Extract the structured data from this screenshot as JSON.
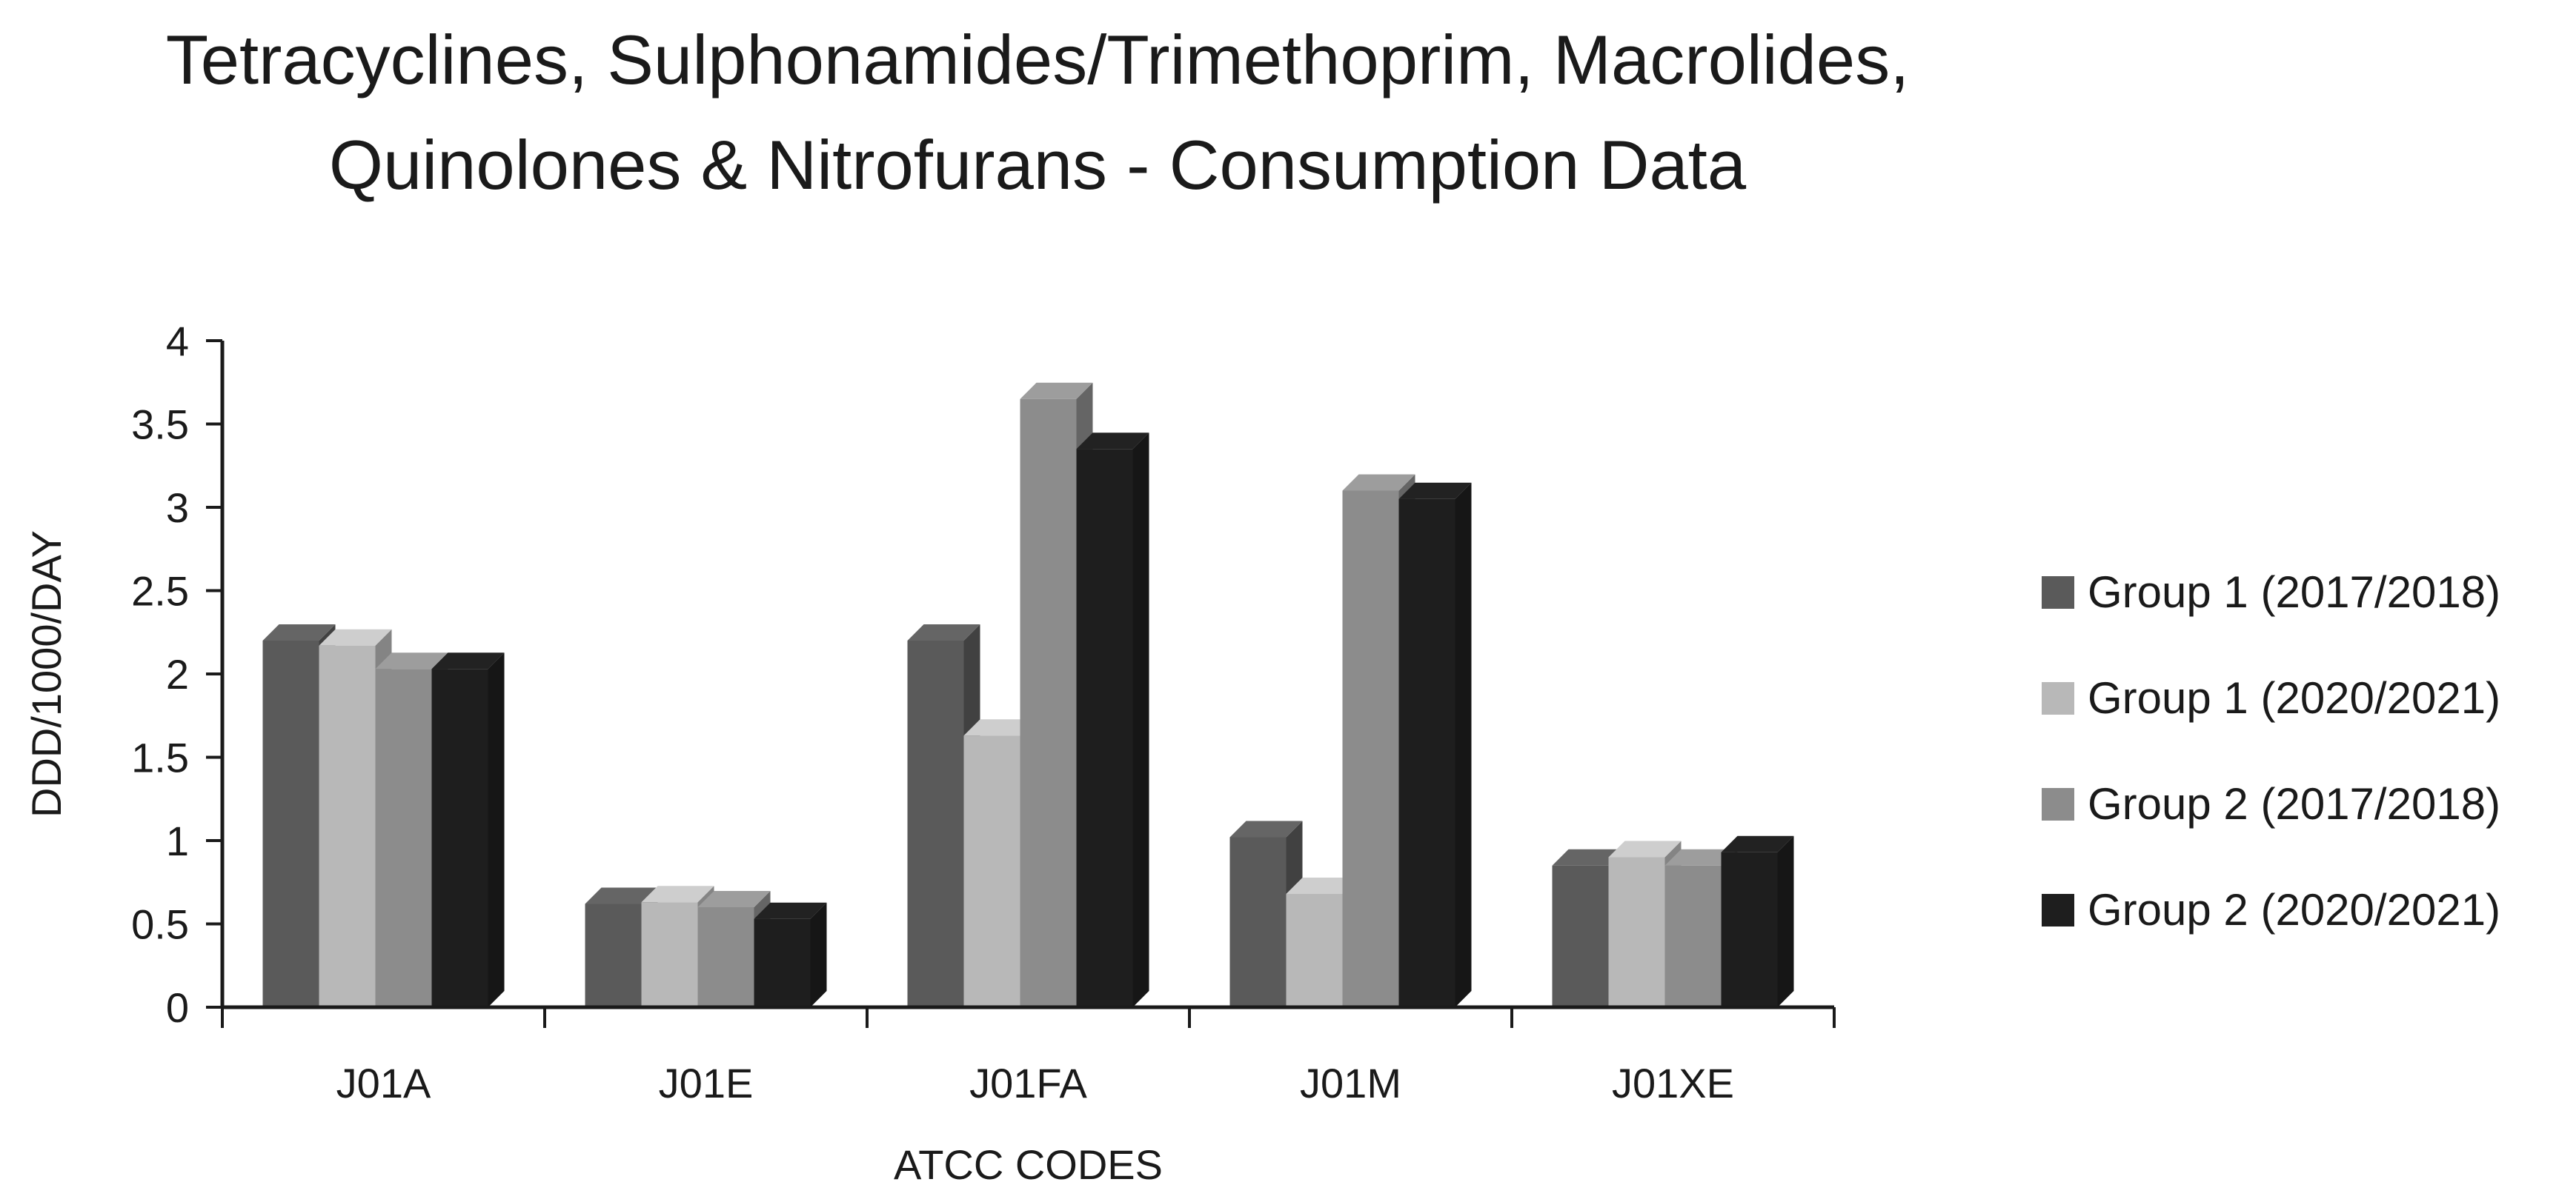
{
  "chart_data": {
    "type": "bar",
    "title_lines": [
      "Tetracyclines, Sulphonamides/Trimethoprim, Macrolides,",
      "Quinolones & Nitrofurans - Consumption Data"
    ],
    "xlabel": "ATCC CODES",
    "ylabel": "DDD/1000/DAY",
    "categories": [
      "J01A",
      "J01E",
      "J01FA",
      "J01M",
      "J01XE"
    ],
    "ylim": [
      0,
      4
    ],
    "yticks": [
      "0",
      "0.5",
      "1",
      "1.5",
      "2",
      "2.5",
      "3",
      "3.5",
      "4"
    ],
    "legend_position": "right",
    "grid": false,
    "series": [
      {
        "name": "Group 1 (2017/2018)",
        "color": "#5a5a5a",
        "values": [
          2.2,
          0.62,
          2.2,
          1.02,
          0.85
        ]
      },
      {
        "name": "Group 1 (2020/2021)",
        "color": "#b8b8b8",
        "values": [
          2.17,
          0.63,
          1.63,
          0.68,
          0.9
        ]
      },
      {
        "name": "Group 2 (2017/2018)",
        "color": "#8c8c8c",
        "values": [
          2.03,
          0.6,
          3.65,
          3.1,
          0.85
        ]
      },
      {
        "name": "Group 2 (2020/2021)",
        "color": "#1e1e1e",
        "values": [
          2.03,
          0.53,
          3.35,
          3.05,
          0.93
        ]
      }
    ]
  }
}
